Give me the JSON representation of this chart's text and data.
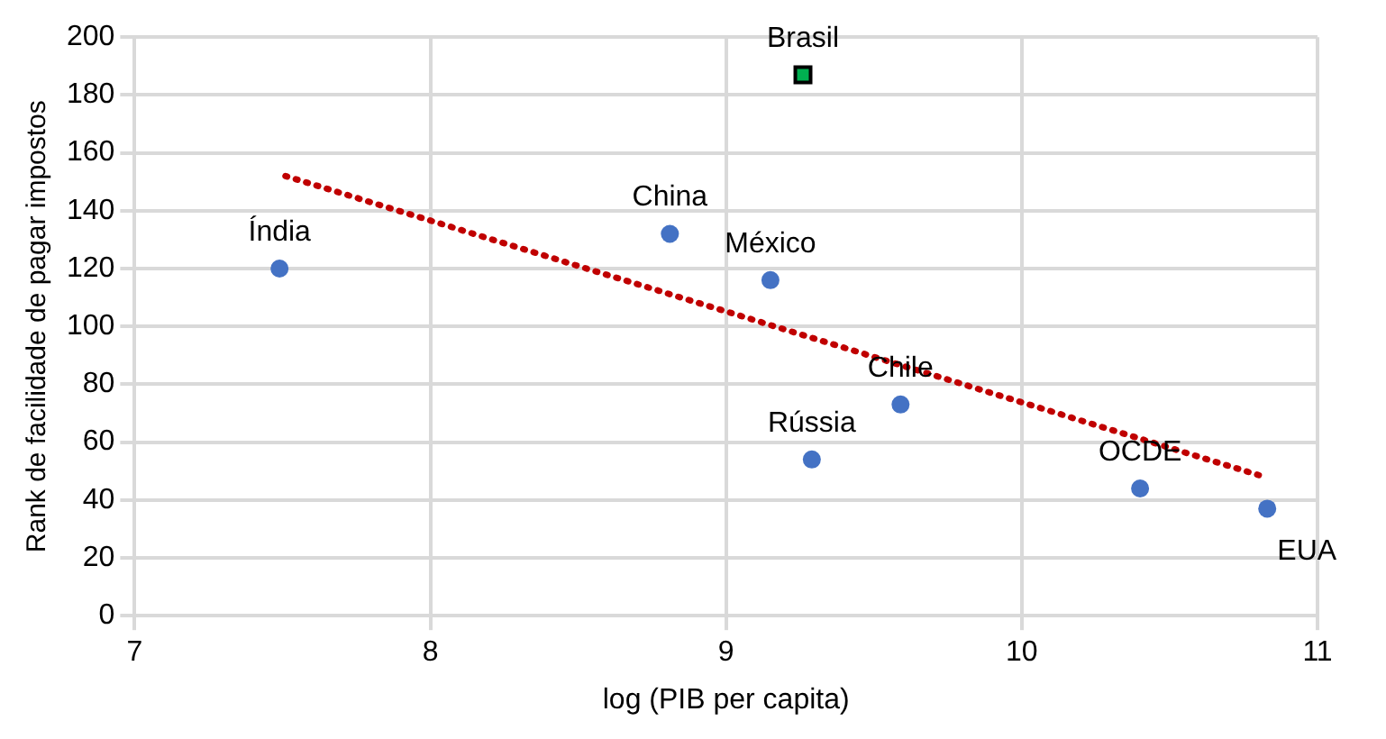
{
  "chart_data": {
    "type": "scatter",
    "xlabel": "log (PIB per capita)",
    "ylabel": "Rank de facilidade de pagar impostos",
    "xlim": [
      7,
      11
    ],
    "xticks": [
      7,
      8,
      9,
      10,
      11
    ],
    "ylim": [
      0,
      200
    ],
    "yticks": [
      0,
      20,
      40,
      60,
      80,
      100,
      120,
      140,
      160,
      180,
      200
    ],
    "grid": true,
    "legend": false,
    "series": [
      {
        "type": "scatter",
        "color": "#4472c4",
        "marker": "circle",
        "x": [
          7.49,
          8.81,
          9.15,
          9.29,
          9.59,
          10.4,
          10.83
        ],
        "values": [
          120,
          132,
          116,
          54,
          73,
          44,
          37
        ]
      },
      {
        "type": "scatter",
        "color": "#00b050",
        "marker": "square",
        "x": [
          9.26
        ],
        "values": [
          187
        ]
      },
      {
        "type": "line",
        "color": "#c00000",
        "marker": "none",
        "line_style": "dotted",
        "x": [
          7.51,
          10.82
        ],
        "values": [
          152,
          48
        ]
      }
    ],
    "annotations": [
      {
        "text": "Índia",
        "x": 7.49,
        "y": 120
      },
      {
        "text": "China",
        "x": 8.81,
        "y": 132
      },
      {
        "text": "México",
        "x": 9.15,
        "y": 116
      },
      {
        "text": "Rússia",
        "x": 9.29,
        "y": 54
      },
      {
        "text": "Chile",
        "x": 9.59,
        "y": 73
      },
      {
        "text": "OCDE",
        "x": 10.4,
        "y": 44
      },
      {
        "text": "EUA",
        "x": 10.83,
        "y": 37
      },
      {
        "text": "Brasil",
        "x": 9.26,
        "y": 187
      }
    ]
  }
}
